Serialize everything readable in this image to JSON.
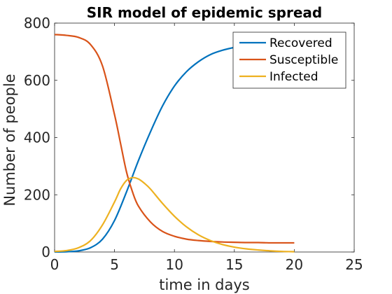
{
  "chart_data": {
    "type": "line",
    "title": "SIR model of epidemic spread",
    "xlabel": "time in days",
    "ylabel": "Number of people",
    "xlim": [
      0,
      25
    ],
    "ylim": [
      0,
      800
    ],
    "xticks": [
      "0",
      "5",
      "10",
      "15",
      "20",
      "25"
    ],
    "yticks": [
      "0",
      "200",
      "400",
      "600",
      "800"
    ],
    "grid": false,
    "legend_position": "top-right",
    "series": [
      {
        "name": "Recovered",
        "color": "#0072BD",
        "x": [
          0,
          1,
          2,
          3,
          4,
          5,
          6,
          7,
          8,
          9,
          10,
          11,
          12,
          13,
          14,
          15,
          16,
          17,
          18,
          19,
          20
        ],
        "values": [
          0,
          1,
          4,
          15,
          45,
          110,
          210,
          320,
          420,
          510,
          580,
          630,
          665,
          690,
          705,
          715,
          722,
          726,
          728,
          729,
          730
        ]
      },
      {
        "name": "Susceptible",
        "color": "#D95319",
        "x": [
          0,
          1,
          2,
          3,
          4,
          5,
          5.5,
          6,
          6.5,
          7,
          8,
          9,
          10,
          11,
          12,
          13,
          14,
          15,
          16,
          17,
          18,
          19,
          20
        ],
        "values": [
          760,
          757,
          750,
          725,
          650,
          480,
          380,
          280,
          210,
          160,
          105,
          72,
          55,
          45,
          40,
          37,
          35,
          34,
          33,
          33,
          32,
          32,
          32
        ]
      },
      {
        "name": "Infected",
        "color": "#EDB120",
        "x": [
          0,
          1,
          2,
          3,
          4,
          5,
          5.5,
          6,
          6.5,
          7,
          7.5,
          8,
          9,
          10,
          11,
          12,
          13,
          14,
          15,
          16,
          17,
          18,
          19,
          20
        ],
        "values": [
          2,
          5,
          15,
          40,
          95,
          175,
          220,
          250,
          260,
          255,
          240,
          220,
          170,
          125,
          88,
          60,
          40,
          26,
          17,
          11,
          7,
          4,
          2,
          1
        ]
      }
    ]
  }
}
